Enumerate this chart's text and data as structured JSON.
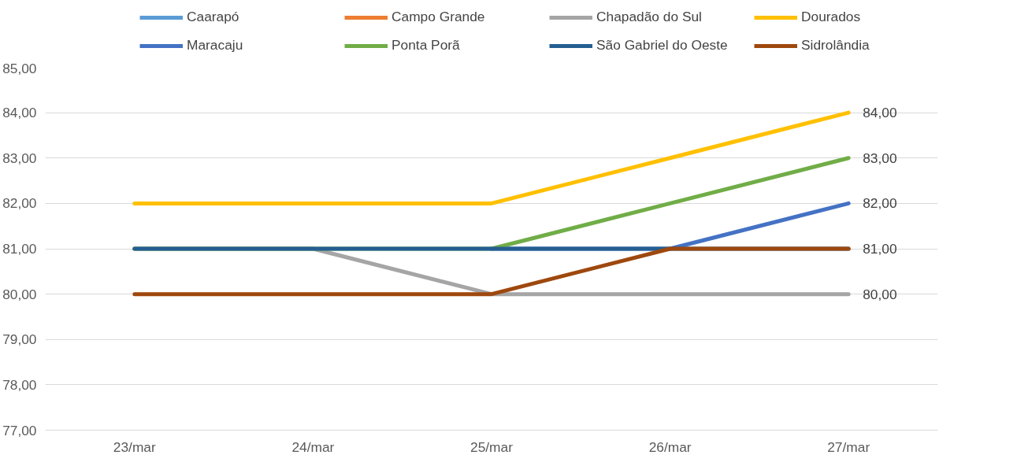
{
  "chart_data": {
    "type": "line",
    "categories": [
      "23/mar",
      "24/mar",
      "25/mar",
      "26/mar",
      "27/mar"
    ],
    "series": [
      {
        "name": "Caarapó",
        "color": "#5b9bd5",
        "values": [
          null,
          null,
          null,
          null,
          null
        ]
      },
      {
        "name": "Campo Grande",
        "color": "#ed7d31",
        "values": [
          null,
          null,
          null,
          null,
          null
        ]
      },
      {
        "name": "Chapadão do Sul",
        "color": "#a5a5a5",
        "values": [
          81,
          81,
          80,
          80,
          80
        ],
        "value_labels": [
          null,
          null,
          null,
          null,
          "80,00"
        ]
      },
      {
        "name": "Dourados",
        "color": "#ffc000",
        "values": [
          82,
          82,
          82,
          83,
          84
        ],
        "value_labels": [
          null,
          null,
          null,
          null,
          "84,00"
        ]
      },
      {
        "name": "Maracaju",
        "color": "#4472c4",
        "values": [
          null,
          null,
          81,
          81,
          82
        ],
        "value_labels": [
          null,
          null,
          null,
          null,
          "82,00"
        ]
      },
      {
        "name": "Ponta Porã",
        "color": "#70ad47",
        "values": [
          81,
          81,
          81,
          82,
          83
        ],
        "value_labels": [
          null,
          null,
          null,
          null,
          "83,00"
        ]
      },
      {
        "name": "São Gabriel do Oeste",
        "color": "#255e91",
        "values": [
          81,
          81,
          81,
          81,
          81
        ]
      },
      {
        "name": "Sidrolândia",
        "color": "#9e480e",
        "values": [
          80,
          80,
          80,
          81,
          81
        ],
        "value_labels": [
          null,
          null,
          null,
          null,
          "81,00"
        ]
      }
    ],
    "ylim": [
      77,
      85
    ],
    "yticks": [
      {
        "value": 77,
        "label": "77,00"
      },
      {
        "value": 78,
        "label": "78,00"
      },
      {
        "value": 79,
        "label": "79,00"
      },
      {
        "value": 80,
        "label": "80,00"
      },
      {
        "value": 81,
        "label": "81,00"
      },
      {
        "value": 82,
        "label": "82,00"
      },
      {
        "value": 83,
        "label": "83,00"
      },
      {
        "value": 84,
        "label": "84,00"
      },
      {
        "value": 85,
        "label": "85,00"
      }
    ],
    "grid": "y",
    "legend": "top",
    "marker": "none",
    "line_style": "solid"
  }
}
